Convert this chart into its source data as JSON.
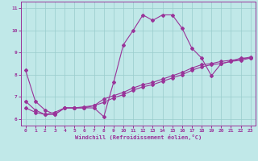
{
  "background_color": "#c0e8e8",
  "line_color": "#993399",
  "grid_color": "#99cccc",
  "xlim": [
    -0.5,
    23.5
  ],
  "ylim": [
    5.7,
    11.3
  ],
  "xticks": [
    0,
    1,
    2,
    3,
    4,
    5,
    6,
    7,
    8,
    9,
    10,
    11,
    12,
    13,
    14,
    15,
    16,
    17,
    18,
    19,
    20,
    21,
    22,
    23
  ],
  "yticks": [
    6,
    7,
    8,
    9,
    10,
    11
  ],
  "xlabel": "Windchill (Refroidissement éolien,°C)",
  "curve1_x": [
    0,
    1,
    2,
    3,
    4,
    5,
    6,
    7,
    8,
    9,
    10,
    11,
    12,
    13,
    14,
    15,
    16,
    17,
    18,
    19,
    20,
    21,
    22,
    23
  ],
  "curve1_y": [
    8.2,
    6.8,
    6.4,
    6.2,
    6.5,
    6.5,
    6.5,
    6.5,
    6.1,
    7.65,
    9.35,
    10.0,
    10.7,
    10.45,
    10.7,
    10.7,
    10.1,
    9.2,
    8.75,
    7.95,
    8.5,
    8.6,
    8.75,
    8.75
  ],
  "curve2_x": [
    0,
    1,
    2,
    3,
    4,
    5,
    6,
    7,
    8,
    9,
    10,
    11,
    12,
    13,
    14,
    15,
    16,
    17,
    18,
    19,
    20,
    21,
    22,
    23
  ],
  "curve2_y": [
    6.8,
    6.4,
    6.2,
    6.2,
    6.5,
    6.5,
    6.5,
    6.6,
    6.9,
    7.05,
    7.2,
    7.4,
    7.55,
    7.65,
    7.8,
    7.95,
    8.1,
    8.3,
    8.45,
    8.5,
    8.6,
    8.65,
    8.7,
    8.8
  ],
  "curve3_x": [
    0,
    1,
    2,
    3,
    4,
    5,
    6,
    7,
    8,
    9,
    10,
    11,
    12,
    13,
    14,
    15,
    16,
    17,
    18,
    19,
    20,
    21,
    22,
    23
  ],
  "curve3_y": [
    6.5,
    6.3,
    6.2,
    6.3,
    6.5,
    6.5,
    6.55,
    6.6,
    6.75,
    6.95,
    7.1,
    7.3,
    7.45,
    7.55,
    7.7,
    7.85,
    8.0,
    8.2,
    8.35,
    8.45,
    8.5,
    8.6,
    8.65,
    8.75
  ]
}
